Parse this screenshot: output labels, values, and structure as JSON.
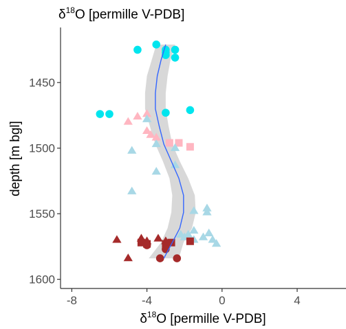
{
  "chart_data": {
    "type": "scatter",
    "title": "δ18O [permille V-PDB]",
    "title_parts": {
      "prefix": "δ",
      "sup": "18",
      "rest": "O [permille V-PDB]"
    },
    "xlabel": "δ18O [permille V-PDB]",
    "xlabel_parts": {
      "prefix": "δ",
      "sup": "18",
      "rest": "O [permille V-PDB]"
    },
    "ylabel": "depth [m bgl]",
    "xlim": [
      -8.6,
      6.6
    ],
    "ylim": [
      1607,
      1408
    ],
    "y_reversed": true,
    "x_ticks": [
      -8,
      -4,
      0,
      4
    ],
    "y_ticks": [
      1450,
      1500,
      1550,
      1600
    ],
    "grid": false,
    "legend": "none",
    "colors": {
      "cyan": "#00e5ee",
      "pink": "#ffb6c1",
      "lightblue": "#a8d8e6",
      "darkred": "#a52a2a",
      "smooth_line": "#3366ff",
      "ribbon": "#bebebe",
      "axis": "#333333"
    },
    "series": [
      {
        "shape": "circle",
        "color": "cyan",
        "points": [
          [
            -3.5,
            1421
          ],
          [
            -4.5,
            1425
          ],
          [
            -3.0,
            1425
          ],
          [
            -2.5,
            1425
          ],
          [
            -3.0,
            1427
          ],
          [
            -3.0,
            1429
          ],
          [
            -2.5,
            1431
          ],
          [
            -6.5,
            1474
          ],
          [
            -6.0,
            1474
          ],
          [
            -3.0,
            1473
          ],
          [
            -1.7,
            1471
          ]
        ]
      },
      {
        "shape": "triangle",
        "color": "pink",
        "points": [
          [
            -5.0,
            1480
          ],
          [
            -4.5,
            1476
          ],
          [
            -4.0,
            1474
          ],
          [
            -3.8,
            1490
          ],
          [
            -4.0,
            1487
          ],
          [
            -3.5,
            1492
          ]
        ]
      },
      {
        "shape": "square",
        "color": "pink",
        "points": [
          [
            -2.8,
            1496
          ],
          [
            -2.3,
            1496
          ],
          [
            -1.7,
            1499
          ]
        ]
      },
      {
        "shape": "triangle",
        "color": "lightblue",
        "points": [
          [
            -4.0,
            1478
          ],
          [
            -4.8,
            1502
          ],
          [
            -3.5,
            1497
          ],
          [
            -2.5,
            1500
          ],
          [
            -3.5,
            1518
          ],
          [
            -2.5,
            1513
          ],
          [
            -4.8,
            1533
          ],
          [
            -1.5,
            1548
          ],
          [
            -0.8,
            1549
          ],
          [
            -0.8,
            1546
          ],
          [
            -2.0,
            1568
          ],
          [
            -1.5,
            1570
          ],
          [
            -0.5,
            1570
          ],
          [
            -0.3,
            1573
          ],
          [
            -1.0,
            1568
          ],
          [
            -0.7,
            1565
          ],
          [
            -1.5,
            1563
          ],
          [
            -2.2,
            1566
          ],
          [
            -1.8,
            1566
          ]
        ]
      },
      {
        "shape": "triangle",
        "color": "darkred",
        "points": [
          [
            -5.6,
            1570
          ],
          [
            -5.0,
            1584
          ],
          [
            -4.3,
            1569
          ],
          [
            -4.0,
            1571
          ],
          [
            -3.4,
            1569
          ],
          [
            -3.0,
            1571
          ]
        ]
      },
      {
        "shape": "square",
        "color": "darkred",
        "points": [
          [
            -4.3,
            1572
          ],
          [
            -4.0,
            1573
          ],
          [
            -3.0,
            1573
          ],
          [
            -2.7,
            1572
          ],
          [
            -1.7,
            1571
          ]
        ]
      },
      {
        "shape": "circle",
        "color": "darkred",
        "points": [
          [
            -4.0,
            1574
          ],
          [
            -3.0,
            1577
          ],
          [
            -3.3,
            1584
          ],
          [
            -2.4,
            1584
          ]
        ]
      }
    ],
    "smooth": {
      "points": [
        [
          -3.0,
          1421
        ],
        [
          -3.25,
          1433
        ],
        [
          -3.45,
          1445
        ],
        [
          -3.55,
          1458
        ],
        [
          -3.55,
          1470
        ],
        [
          -3.35,
          1483
        ],
        [
          -3.1,
          1497
        ],
        [
          -2.7,
          1510
        ],
        [
          -2.3,
          1523
        ],
        [
          -2.05,
          1536
        ],
        [
          -2.05,
          1549
        ],
        [
          -2.25,
          1561
        ],
        [
          -2.65,
          1572
        ],
        [
          -3.1,
          1584
        ]
      ],
      "ribbon_halfwidth": [
        0.5,
        0.5,
        0.55,
        0.55,
        0.55,
        0.5,
        0.45,
        0.45,
        0.5,
        0.6,
        0.65,
        0.65,
        0.6,
        0.8
      ]
    }
  }
}
